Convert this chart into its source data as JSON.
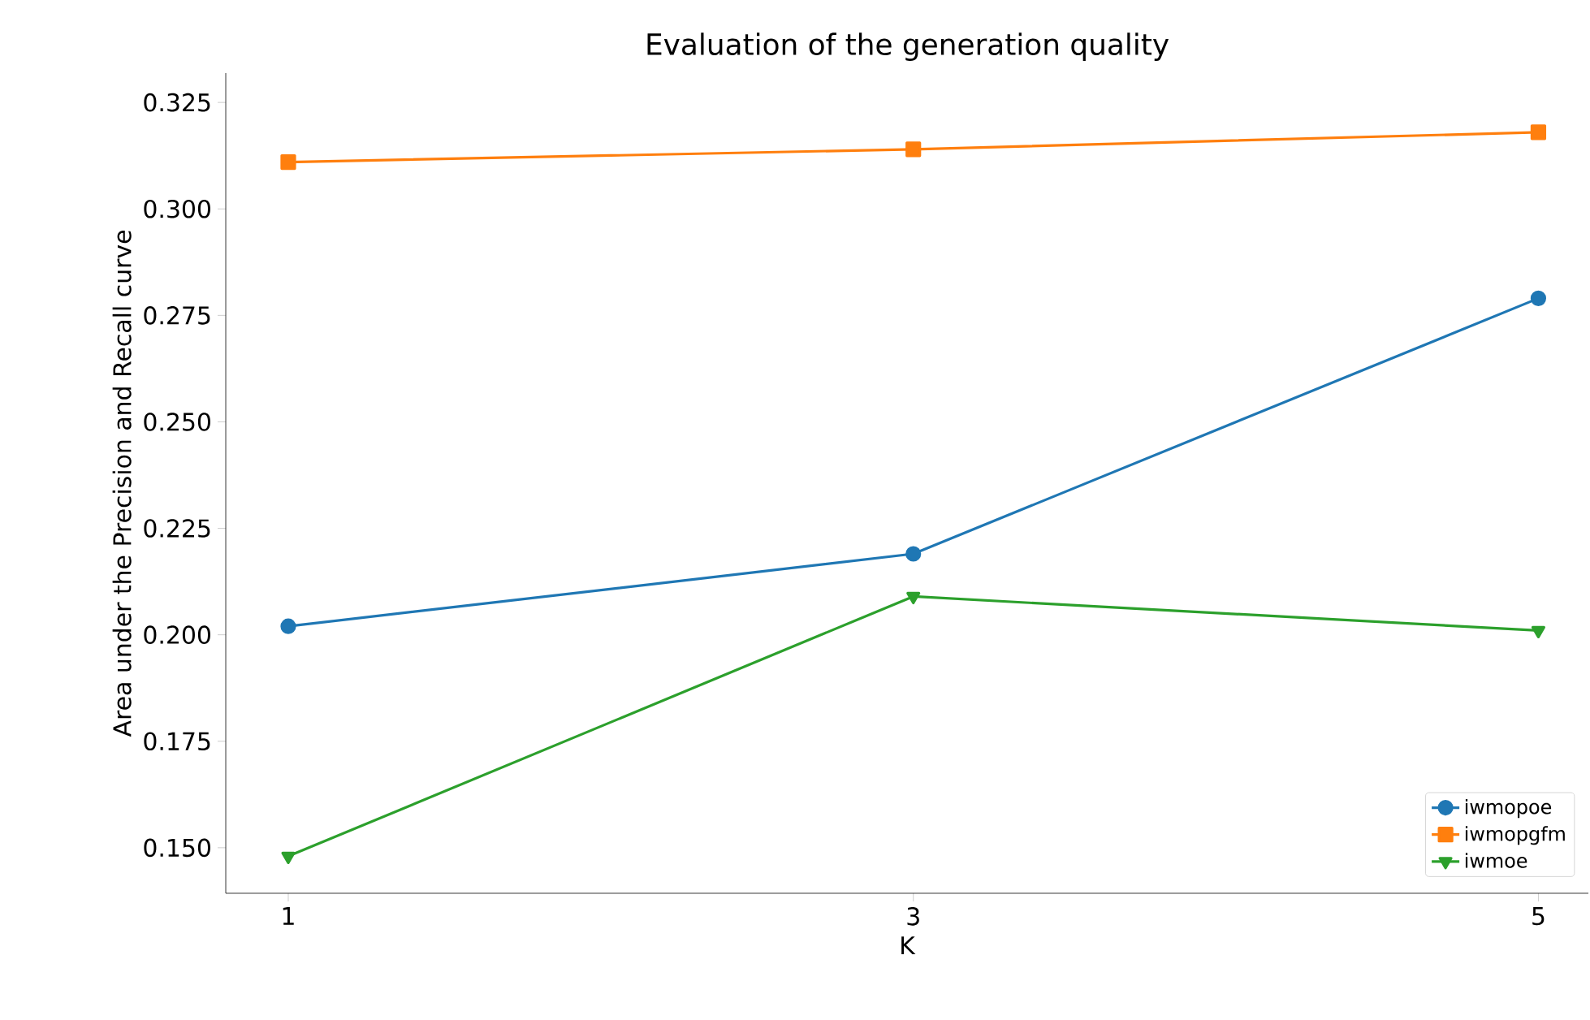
{
  "chart_data": {
    "type": "line",
    "title": "Evaluation of the generation quality",
    "xlabel": "K",
    "ylabel": "Area under the Precision and Recall curve",
    "x": [
      1,
      3,
      5
    ],
    "series": [
      {
        "name": "iwmopoe",
        "color": "#1f77b4",
        "marker": "circle",
        "values": [
          0.202,
          0.219,
          0.279
        ]
      },
      {
        "name": "iwmopgfm",
        "color": "#ff7f0e",
        "marker": "square",
        "values": [
          0.311,
          0.314,
          0.318
        ]
      },
      {
        "name": "iwmoe",
        "color": "#2ca02c",
        "marker": "triangle_down",
        "values": [
          0.148,
          0.209,
          0.201
        ]
      }
    ],
    "xlim": [
      0.8,
      5.16
    ],
    "ylim": [
      0.1393,
      0.3319
    ],
    "xticks": [
      1,
      3,
      5
    ],
    "yticks": [
      {
        "value": 0.15,
        "label": "0.150"
      },
      {
        "value": 0.175,
        "label": "0.175"
      },
      {
        "value": 0.2,
        "label": "0.200"
      },
      {
        "value": 0.225,
        "label": "0.225"
      },
      {
        "value": 0.25,
        "label": "0.250"
      },
      {
        "value": 0.275,
        "label": "0.275"
      },
      {
        "value": 0.3,
        "label": "0.300"
      },
      {
        "value": 0.325,
        "label": "0.325"
      }
    ],
    "grid": false,
    "legend": "bottom right",
    "line_style": "solid"
  }
}
